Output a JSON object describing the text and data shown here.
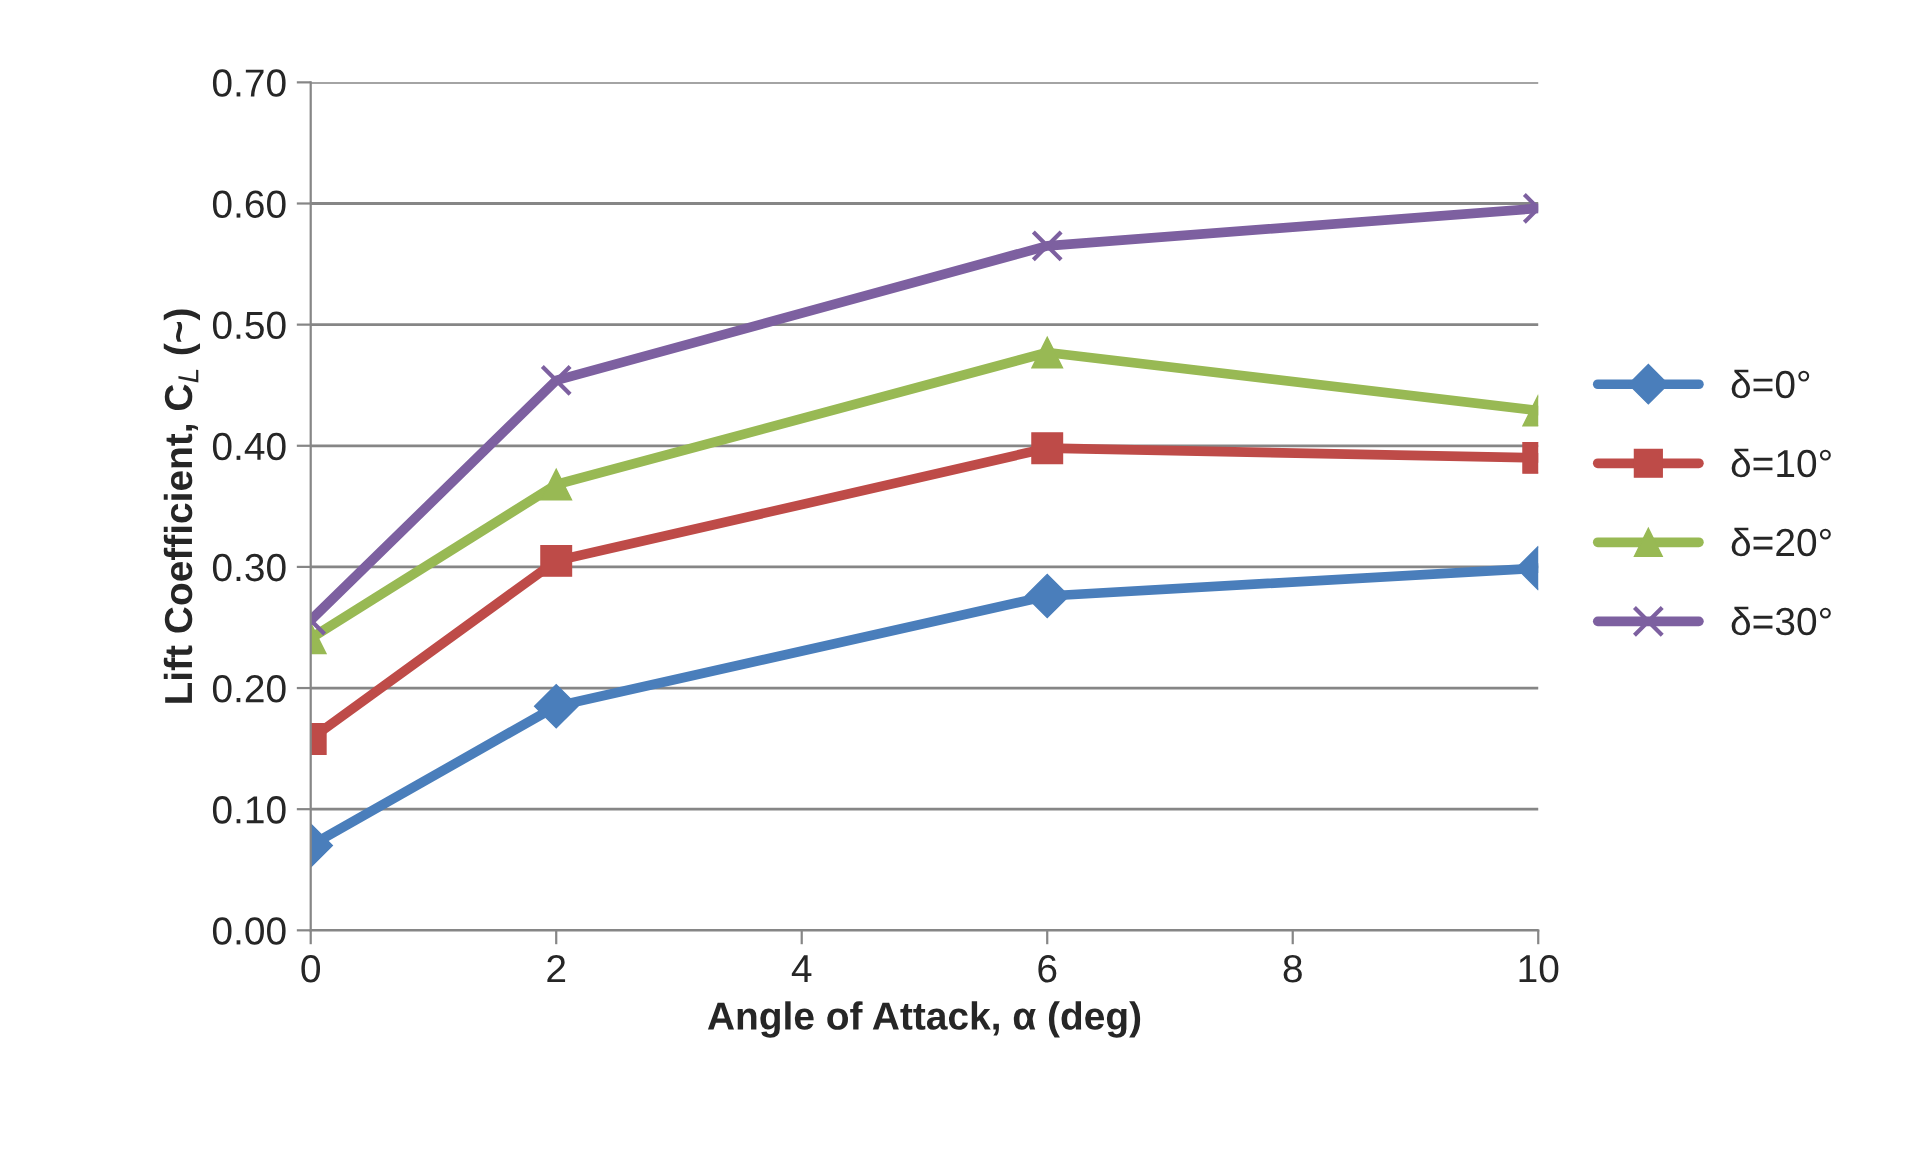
{
  "chart_data": {
    "type": "line",
    "xlabel": "Angle of Attack, α (deg)",
    "ylabel": "Lift Coefficient, C$_{L}$ (~)",
    "x": [
      0,
      2,
      6,
      10
    ],
    "series": [
      {
        "name": "δ=0°",
        "color": "#4a7ebb",
        "marker": "diamond",
        "values": [
          0.07,
          0.185,
          0.276,
          0.299
        ]
      },
      {
        "name": "δ=10°",
        "color": "#be4b48",
        "marker": "square",
        "values": [
          0.158,
          0.305,
          0.398,
          0.39
        ]
      },
      {
        "name": "δ=20°",
        "color": "#98b954",
        "marker": "triangle",
        "values": [
          0.241,
          0.368,
          0.477,
          0.429
        ]
      },
      {
        "name": "δ=30°",
        "color": "#7d60a0",
        "marker": "cross",
        "values": [
          0.256,
          0.454,
          0.565,
          0.596
        ]
      }
    ],
    "xlim": [
      0,
      10
    ],
    "xticks": [
      0,
      2,
      4,
      6,
      8,
      10
    ],
    "ylim": [
      0,
      0.7
    ],
    "yticks": [
      {
        "value": 0,
        "label": "0.00"
      },
      {
        "value": 0.1,
        "label": "0.10"
      },
      {
        "value": 0.2,
        "label": "0.20"
      },
      {
        "value": 0.3,
        "label": "0.30"
      },
      {
        "value": 0.4,
        "label": "0.40"
      },
      {
        "value": 0.5,
        "label": "0.50"
      },
      {
        "value": 0.6,
        "label": "0.60"
      },
      {
        "value": 0.7,
        "label": "0.70"
      }
    ],
    "grid": "y",
    "legend": "right",
    "line_style": "solid"
  }
}
